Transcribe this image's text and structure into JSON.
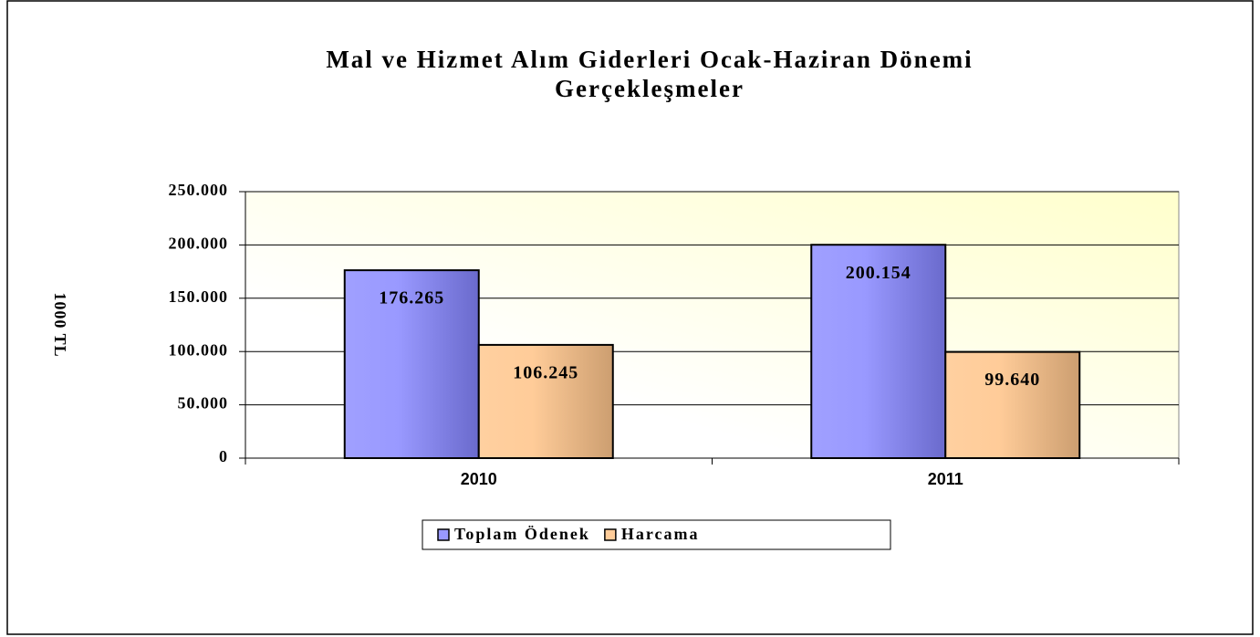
{
  "chart_data": {
    "type": "bar",
    "title": "Mal ve Hizmet Alım Giderleri Ocak-Haziran Dönemi",
    "subtitle": "Gerçekleşmeler",
    "y_label": "1000 TL",
    "categories": [
      "2010",
      "2011"
    ],
    "series": [
      {
        "name": "Toplam Ödenek",
        "color": "#9999ff",
        "values": [
          176265,
          200154
        ],
        "value_labels": [
          "176.265",
          "200.154"
        ]
      },
      {
        "name": "Harcama",
        "color": "#ffcc99",
        "values": [
          106245,
          99640
        ],
        "value_labels": [
          "106.245",
          "99.640"
        ]
      }
    ],
    "ylim": [
      0,
      250000
    ],
    "yticks": [
      0,
      {
        "value": 50000,
        "label": "50.000"
      },
      {
        "value": 100000,
        "label": "100.000"
      },
      {
        "value": 150000,
        "label": "150.000"
      },
      {
        "value": 200000,
        "label": "200.000"
      },
      {
        "value": 250000,
        "label": "250.000"
      }
    ],
    "grid": true,
    "legend": "bottom"
  }
}
